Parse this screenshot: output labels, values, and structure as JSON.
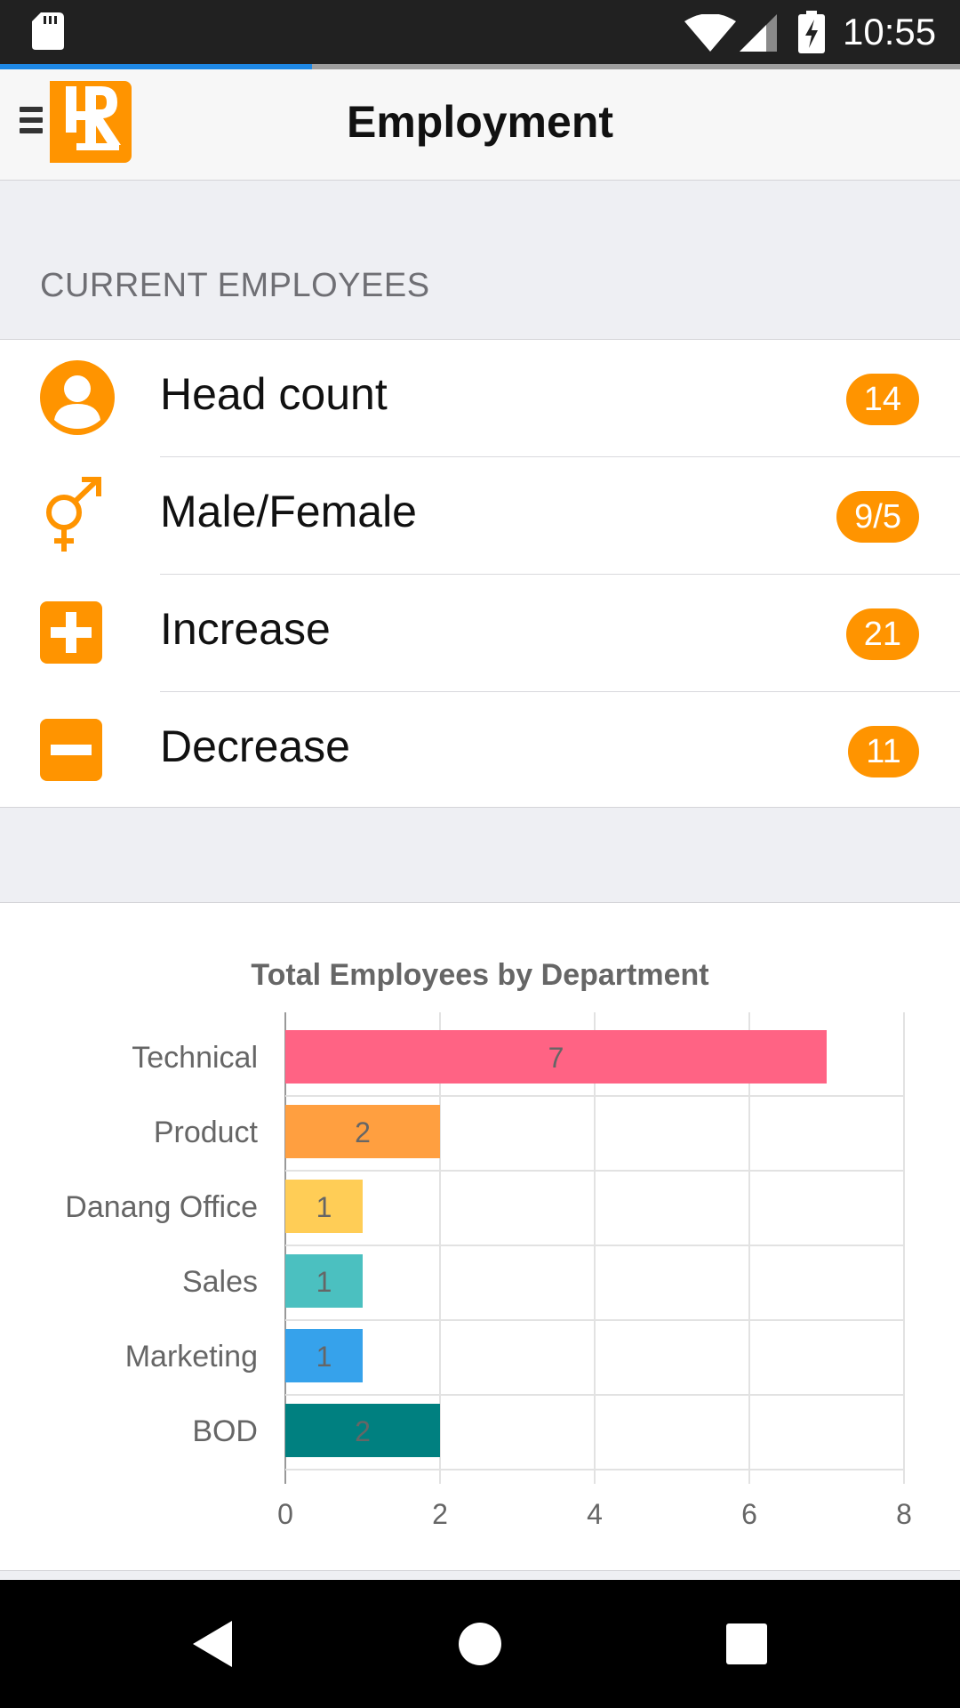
{
  "status_bar": {
    "time": "10:55",
    "icons": [
      "sd-card-icon",
      "wifi-icon",
      "cell-signal-icon",
      "battery-charging-icon"
    ]
  },
  "loading_progress": 0.325,
  "app_bar": {
    "menu_icon": "hamburger-menu-icon",
    "logo_text": "HR",
    "title": "Employment"
  },
  "section": {
    "title": "CURRENT EMPLOYEES"
  },
  "items": [
    {
      "label": "Head count",
      "value": "14",
      "icon": "person-icon"
    },
    {
      "label": "Male/Female",
      "value": "9/5",
      "icon": "gender-icon"
    },
    {
      "label": "Increase",
      "value": "21",
      "icon": "plus-icon"
    },
    {
      "label": "Decrease",
      "value": "11",
      "icon": "minus-icon"
    }
  ],
  "colors": {
    "accent": "#ff9400",
    "progress": "#1e88e5"
  },
  "chart_data": {
    "type": "bar",
    "orientation": "horizontal",
    "title": "Total Employees by Department",
    "categories": [
      "Technical",
      "Product",
      "Danang Office",
      "Sales",
      "Marketing",
      "BOD"
    ],
    "values": [
      7,
      2,
      1,
      1,
      1,
      2
    ],
    "data_labels": [
      "7",
      "2",
      "1",
      "1",
      "1",
      "2"
    ],
    "colors": [
      "#ff6384",
      "#ff9f40",
      "#ffcd56",
      "#4bc0c0",
      "#36a2eb",
      "#008080"
    ],
    "xlim": [
      0,
      8
    ],
    "x_ticks": [
      "0",
      "2",
      "4",
      "6",
      "8"
    ],
    "grid": true,
    "legend": "none"
  },
  "nav_bar": {
    "icons": [
      "back-icon",
      "home-icon",
      "recents-icon"
    ]
  }
}
